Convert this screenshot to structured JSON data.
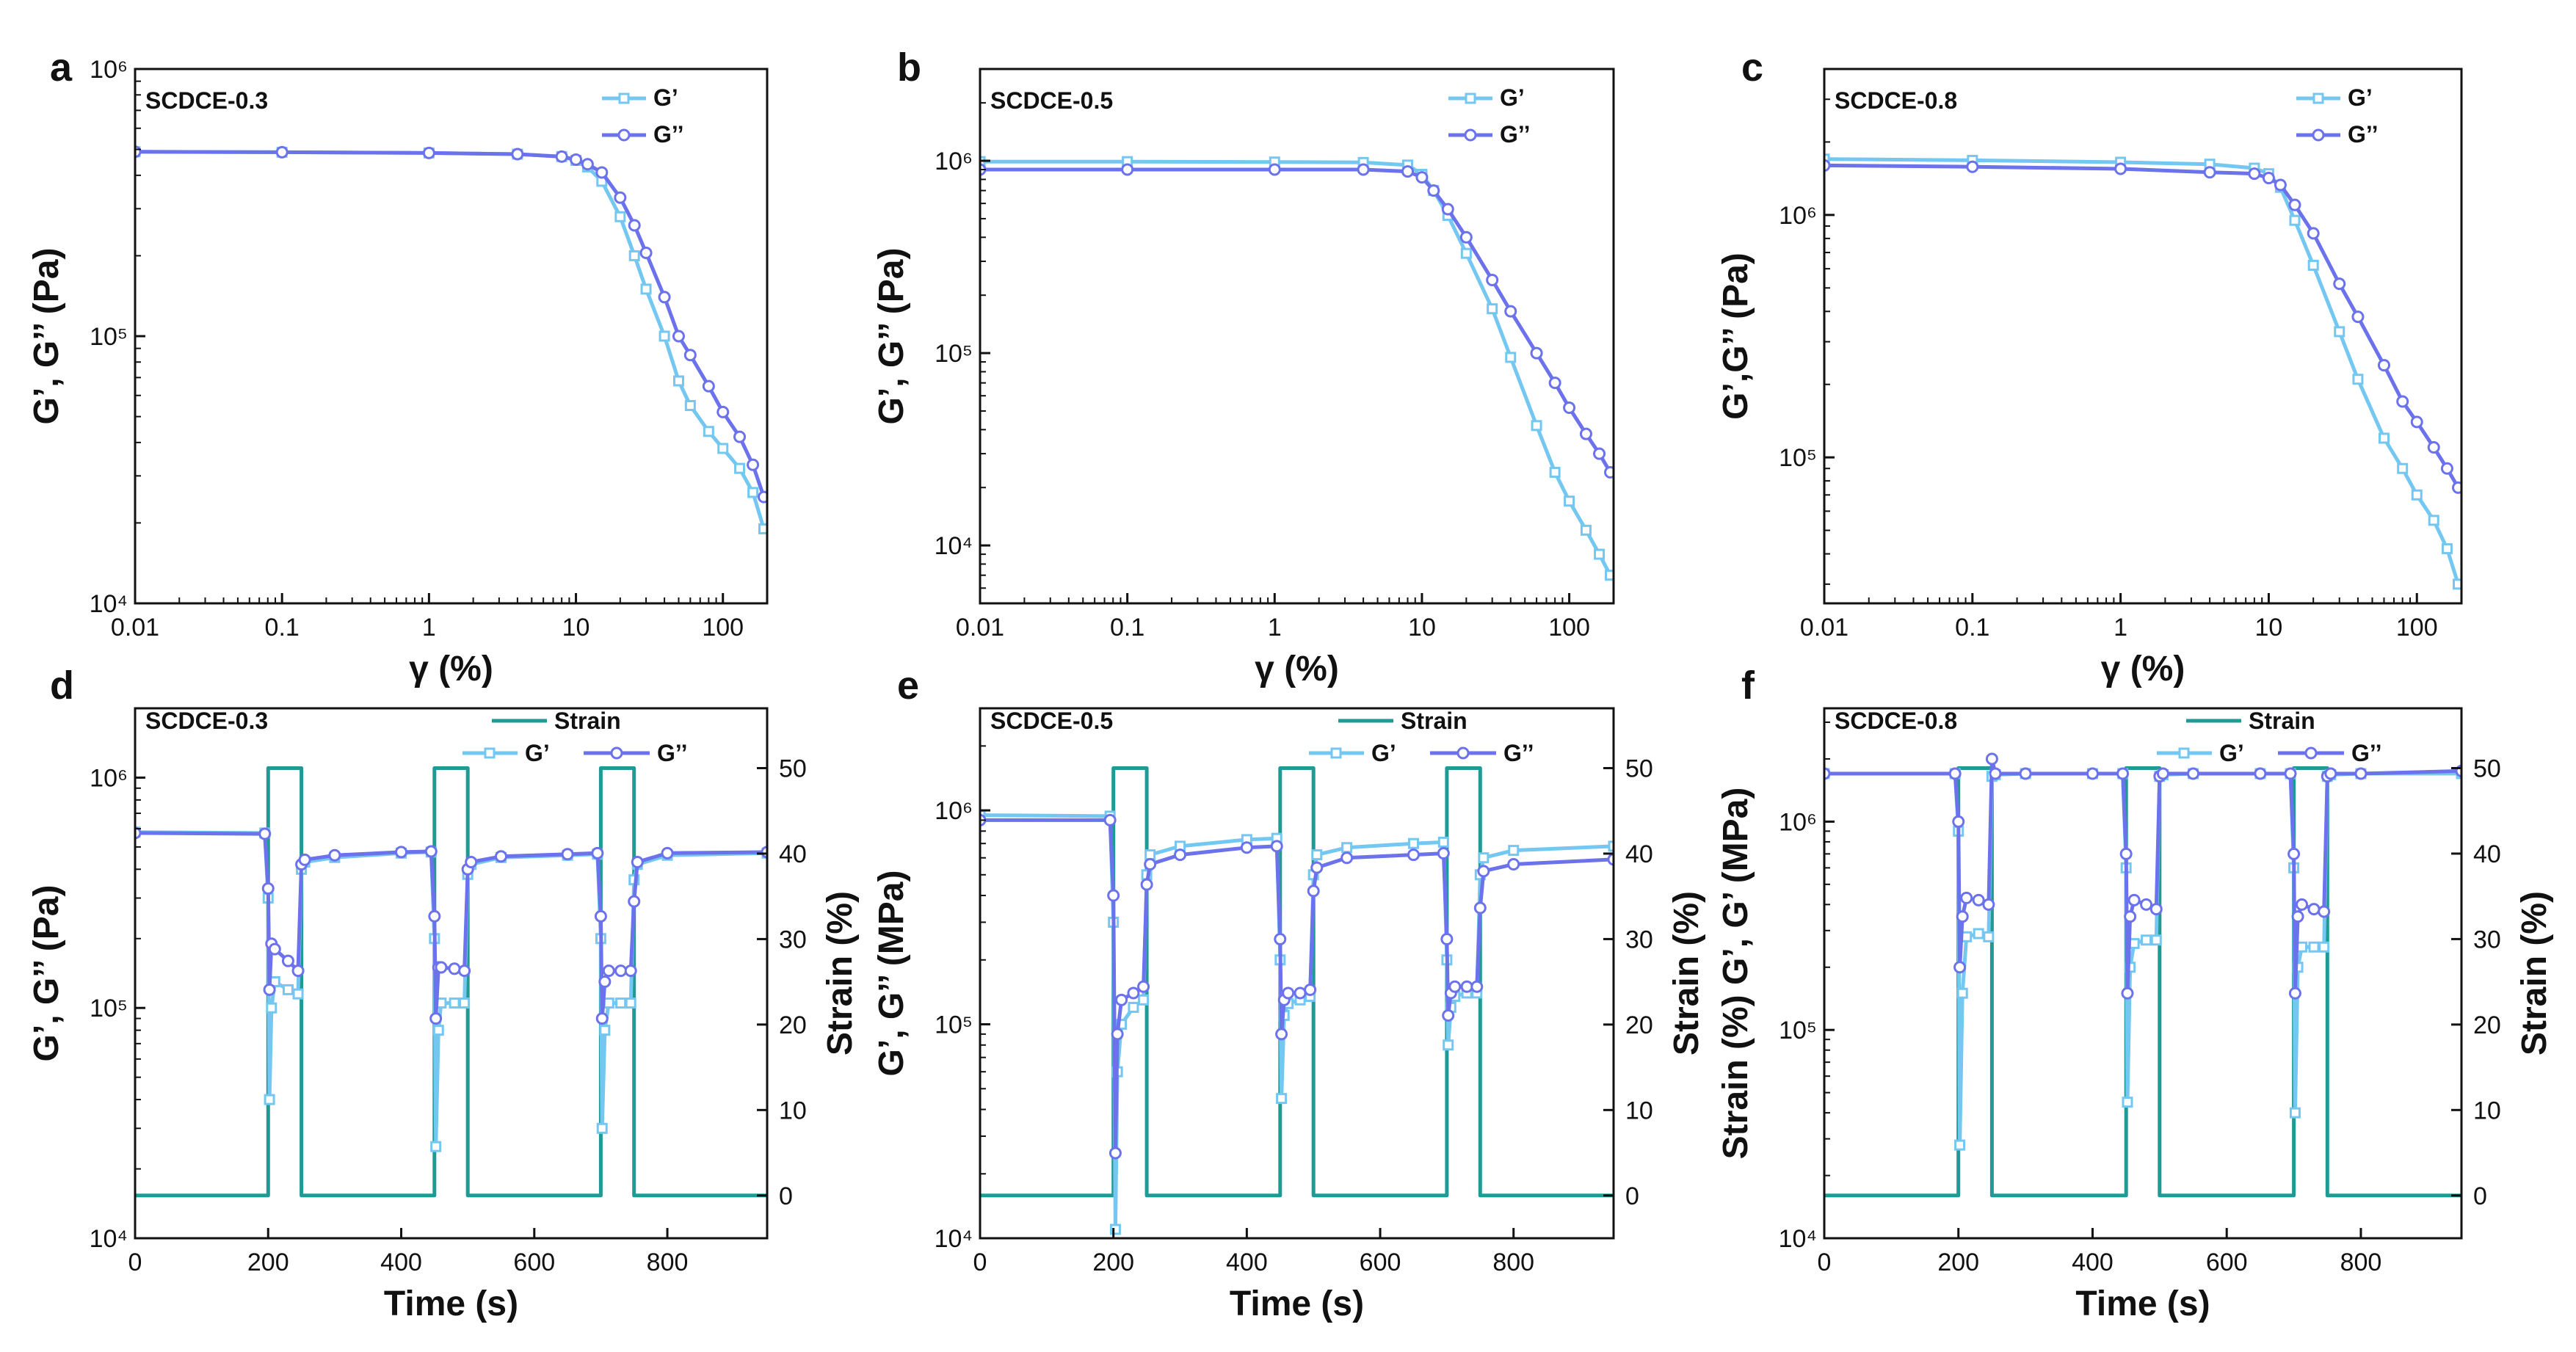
{
  "colors": {
    "g_prime": "#74c7f0",
    "g_double": "#6b72ec",
    "strain": "#1f9a95",
    "axis": "#111111"
  },
  "chart_data": [
    {
      "panel": "a",
      "type": "line",
      "sample": "SCDCE-0.3",
      "xscale": "log",
      "yscale": "log",
      "xlim": [
        0.01,
        200
      ],
      "ylim": [
        10000,
        1000000
      ],
      "xticks": [
        "0.01",
        "0.1",
        "1",
        "10",
        "100"
      ],
      "xtick_values": [
        0.01,
        0.1,
        1,
        10,
        100
      ],
      "yticks": [
        "10⁴",
        "10⁵",
        "10⁶"
      ],
      "ytick_values": [
        10000,
        100000,
        1000000
      ],
      "xlabel": "γ (%)",
      "ylabel": "G’, G’’ (Pa)",
      "legend": [
        "G’",
        "G’’"
      ],
      "series": [
        {
          "name": "G’",
          "x": [
            0.01,
            0.1,
            1,
            4,
            8,
            10,
            12,
            15,
            20,
            25,
            30,
            40,
            50,
            60,
            80,
            100,
            130,
            160,
            190
          ],
          "y": [
            490000,
            488000,
            485000,
            480000,
            470000,
            455000,
            430000,
            380000,
            280000,
            200000,
            150000,
            100000,
            68000,
            55000,
            44000,
            38000,
            32000,
            26000,
            19000
          ]
        },
        {
          "name": "G’’",
          "x": [
            0.01,
            0.1,
            1,
            4,
            8,
            10,
            12,
            15,
            20,
            25,
            30,
            40,
            50,
            60,
            80,
            100,
            130,
            160,
            190
          ],
          "y": [
            490000,
            488000,
            485000,
            480000,
            470000,
            458000,
            440000,
            410000,
            330000,
            260000,
            205000,
            140000,
            100000,
            85000,
            65000,
            52000,
            42000,
            33000,
            25000
          ]
        }
      ]
    },
    {
      "panel": "b",
      "type": "line",
      "sample": "SCDCE-0.5",
      "xscale": "log",
      "yscale": "log",
      "xlim": [
        0.01,
        200
      ],
      "ylim": [
        5000,
        3000000
      ],
      "xticks": [
        "0.01",
        "0.1",
        "1",
        "10",
        "100"
      ],
      "xtick_values": [
        0.01,
        0.1,
        1,
        10,
        100
      ],
      "yticks": [
        "10⁴",
        "10⁵",
        "10⁶"
      ],
      "ytick_values": [
        10000,
        100000,
        1000000
      ],
      "xlabel": "γ (%)",
      "ylabel": "G’, G’’ (Pa)",
      "legend": [
        "G’",
        "G’’"
      ],
      "series": [
        {
          "name": "G’",
          "x": [
            0.01,
            0.1,
            1,
            4,
            8,
            10,
            12,
            15,
            20,
            30,
            40,
            60,
            80,
            100,
            130,
            160,
            190
          ],
          "y": [
            990000,
            990000,
            985000,
            980000,
            950000,
            850000,
            700000,
            520000,
            330000,
            170000,
            95000,
            42000,
            24000,
            17000,
            12000,
            9000,
            7000
          ]
        },
        {
          "name": "G’’",
          "x": [
            0.01,
            0.1,
            1,
            4,
            8,
            10,
            12,
            15,
            20,
            30,
            40,
            60,
            80,
            100,
            130,
            160,
            190
          ],
          "y": [
            900000,
            900000,
            900000,
            900000,
            880000,
            820000,
            700000,
            560000,
            400000,
            240000,
            165000,
            100000,
            70000,
            52000,
            38000,
            30000,
            24000
          ]
        }
      ]
    },
    {
      "panel": "c",
      "type": "line",
      "sample": "SCDCE-0.8",
      "xscale": "log",
      "yscale": "log",
      "xlim": [
        0.01,
        200
      ],
      "ylim": [
        25000,
        4000000
      ],
      "xticks": [
        "0.01",
        "0.1",
        "1",
        "10",
        "100"
      ],
      "xtick_values": [
        0.01,
        0.1,
        1,
        10,
        100
      ],
      "yticks": [
        "10⁵",
        "10⁶"
      ],
      "ytick_values": [
        100000,
        1000000
      ],
      "xlabel": "γ (%)",
      "ylabel": "G’,G’’ (Pa)",
      "legend": [
        "G’",
        "G’’"
      ],
      "series": [
        {
          "name": "G’",
          "x": [
            0.01,
            0.1,
            1,
            4,
            8,
            10,
            12,
            15,
            20,
            30,
            40,
            60,
            80,
            100,
            130,
            160,
            190
          ],
          "y": [
            1700000,
            1680000,
            1650000,
            1620000,
            1560000,
            1480000,
            1300000,
            950000,
            620000,
            330000,
            210000,
            120000,
            90000,
            70000,
            55000,
            42000,
            30000
          ]
        },
        {
          "name": "G’’",
          "x": [
            0.01,
            0.1,
            1,
            4,
            8,
            10,
            12,
            15,
            20,
            30,
            40,
            60,
            80,
            100,
            130,
            160,
            190
          ],
          "y": [
            1600000,
            1580000,
            1550000,
            1500000,
            1480000,
            1420000,
            1330000,
            1100000,
            840000,
            520000,
            380000,
            240000,
            170000,
            140000,
            110000,
            90000,
            75000
          ]
        }
      ]
    },
    {
      "panel": "d",
      "type": "line",
      "sample": "SCDCE-0.3",
      "xscale": "linear",
      "yscale": "log",
      "xlim": [
        0,
        950
      ],
      "ylim": [
        10000,
        2000000
      ],
      "y2lim": [
        -5,
        57
      ],
      "xticks": [
        "0",
        "200",
        "400",
        "600",
        "800"
      ],
      "xtick_values": [
        0,
        200,
        400,
        600,
        800
      ],
      "yticks": [
        "10⁴",
        "10⁵",
        "10⁶"
      ],
      "ytick_values": [
        10000,
        100000,
        1000000
      ],
      "y2ticks": [
        "0",
        "10",
        "20",
        "30",
        "40",
        "50"
      ],
      "y2tick_values": [
        0,
        10,
        20,
        30,
        40,
        50
      ],
      "xlabel": "Time (s)",
      "ylabel": "G’, G’’ (Pa)",
      "y2label": "Strain (%)",
      "legend": [
        "Strain",
        "G’",
        "G’’"
      ],
      "series": [
        {
          "name": "Strain",
          "axis": "y2",
          "x": [
            0,
            200,
            200,
            250,
            250,
            450,
            450,
            500,
            500,
            700,
            700,
            750,
            750,
            950
          ],
          "y": [
            0,
            0,
            50,
            50,
            0,
            0,
            50,
            50,
            0,
            0,
            50,
            50,
            0,
            0
          ]
        },
        {
          "name": "G’",
          "x": [
            0,
            195,
            200,
            202,
            205,
            210,
            230,
            245,
            250,
            255,
            300,
            400,
            445,
            450,
            452,
            456,
            460,
            480,
            495,
            500,
            505,
            550,
            650,
            695,
            700,
            702,
            706,
            712,
            730,
            745,
            750,
            755,
            800,
            950
          ],
          "y": [
            580000,
            575000,
            300000,
            40000,
            100000,
            130000,
            120000,
            115000,
            400000,
            430000,
            450000,
            470000,
            475000,
            200000,
            25000,
            80000,
            105000,
            105000,
            105000,
            380000,
            420000,
            450000,
            460000,
            465000,
            200000,
            30000,
            80000,
            105000,
            105000,
            105000,
            360000,
            420000,
            460000,
            470000
          ]
        },
        {
          "name": "G’’",
          "x": [
            0,
            195,
            200,
            202,
            205,
            210,
            230,
            245,
            250,
            255,
            300,
            400,
            445,
            450,
            452,
            456,
            460,
            480,
            495,
            500,
            505,
            550,
            650,
            695,
            700,
            702,
            706,
            712,
            730,
            745,
            750,
            755,
            800,
            950
          ],
          "y": [
            575000,
            570000,
            330000,
            120000,
            190000,
            180000,
            160000,
            145000,
            420000,
            440000,
            460000,
            475000,
            478000,
            250000,
            90000,
            150000,
            150000,
            148000,
            145000,
            400000,
            430000,
            455000,
            465000,
            470000,
            250000,
            90000,
            130000,
            145000,
            145000,
            145000,
            290000,
            430000,
            470000,
            475000
          ]
        }
      ]
    },
    {
      "panel": "e",
      "type": "line",
      "sample": "SCDCE-0.5",
      "xscale": "linear",
      "yscale": "log",
      "xlim": [
        0,
        950
      ],
      "ylim": [
        10000,
        3000000
      ],
      "y2lim": [
        -5,
        57
      ],
      "xticks": [
        "0",
        "200",
        "400",
        "600",
        "800"
      ],
      "xtick_values": [
        0,
        200,
        400,
        600,
        800
      ],
      "yticks": [
        "10⁴",
        "10⁵",
        "10⁶"
      ],
      "ytick_values": [
        10000,
        100000,
        1000000
      ],
      "y2ticks": [
        "0",
        "10",
        "20",
        "30",
        "40",
        "50"
      ],
      "y2tick_values": [
        0,
        10,
        20,
        30,
        40,
        50
      ],
      "xlabel": "Time (s)",
      "ylabel": "G’, G’’ (MPa)",
      "y2label": "Strain (%)",
      "legend": [
        "Strain",
        "G’",
        "G’’"
      ],
      "series": [
        {
          "name": "Strain",
          "axis": "y2",
          "x": [
            0,
            200,
            200,
            250,
            250,
            450,
            450,
            500,
            500,
            700,
            700,
            750,
            750,
            950
          ],
          "y": [
            0,
            0,
            50,
            50,
            0,
            0,
            50,
            50,
            0,
            0,
            50,
            50,
            0,
            0
          ]
        },
        {
          "name": "G’",
          "x": [
            0,
            195,
            200,
            203,
            206,
            212,
            230,
            245,
            250,
            255,
            300,
            400,
            445,
            450,
            452,
            456,
            462,
            480,
            495,
            500,
            505,
            550,
            650,
            695,
            700,
            702,
            706,
            712,
            730,
            745,
            750,
            755,
            800,
            950
          ],
          "y": [
            950000,
            940000,
            300000,
            11000,
            60000,
            100000,
            120000,
            130000,
            500000,
            620000,
            680000,
            730000,
            740000,
            200000,
            45000,
            110000,
            125000,
            130000,
            135000,
            500000,
            620000,
            670000,
            700000,
            710000,
            200000,
            80000,
            120000,
            135000,
            140000,
            140000,
            500000,
            600000,
            650000,
            680000
          ]
        },
        {
          "name": "G’’",
          "x": [
            0,
            195,
            200,
            203,
            206,
            212,
            230,
            245,
            250,
            255,
            300,
            400,
            445,
            450,
            452,
            456,
            462,
            480,
            495,
            500,
            505,
            550,
            650,
            695,
            700,
            702,
            706,
            712,
            730,
            745,
            750,
            755,
            800,
            950
          ],
          "y": [
            900000,
            900000,
            400000,
            25000,
            90000,
            130000,
            140000,
            150000,
            450000,
            560000,
            620000,
            670000,
            680000,
            250000,
            90000,
            130000,
            140000,
            140000,
            145000,
            420000,
            540000,
            600000,
            620000,
            630000,
            250000,
            110000,
            140000,
            150000,
            150000,
            150000,
            350000,
            520000,
            560000,
            590000
          ]
        }
      ]
    },
    {
      "panel": "f",
      "type": "line",
      "sample": "SCDCE-0.8",
      "xscale": "linear",
      "yscale": "log",
      "xlim": [
        0,
        950
      ],
      "ylim": [
        10000,
        3500000
      ],
      "y2lim": [
        -5,
        57
      ],
      "xticks": [
        "0",
        "200",
        "400",
        "600",
        "800"
      ],
      "xtick_values": [
        0,
        200,
        400,
        600,
        800
      ],
      "yticks": [
        "10⁴",
        "10⁵",
        "10⁶"
      ],
      "ytick_values": [
        10000,
        100000,
        1000000
      ],
      "y2ticks": [
        "0",
        "10",
        "20",
        "30",
        "40",
        "50"
      ],
      "y2tick_values": [
        0,
        10,
        20,
        30,
        40,
        50
      ],
      "xlabel": "Time (s)",
      "ylabel": "Strain (%) G’, G’ (MPa)",
      "y2label": "Strain (%)",
      "legend": [
        "Strain",
        "G’",
        "G’’"
      ],
      "series": [
        {
          "name": "Strain",
          "axis": "y2",
          "x": [
            0,
            200,
            200,
            250,
            250,
            450,
            450,
            500,
            500,
            700,
            700,
            750,
            750,
            950
          ],
          "y": [
            0,
            0,
            50,
            50,
            0,
            0,
            50,
            50,
            0,
            0,
            50,
            50,
            0,
            0
          ]
        },
        {
          "name": "G’",
          "x": [
            0,
            195,
            200,
            202,
            206,
            212,
            230,
            245,
            250,
            255,
            300,
            400,
            445,
            450,
            452,
            456,
            462,
            480,
            495,
            500,
            505,
            550,
            650,
            695,
            700,
            702,
            706,
            712,
            730,
            745,
            750,
            755,
            800,
            950
          ],
          "y": [
            1700000,
            1700000,
            900000,
            28000,
            150000,
            280000,
            290000,
            280000,
            1650000,
            1680000,
            1700000,
            1700000,
            1700000,
            600000,
            45000,
            200000,
            260000,
            270000,
            270000,
            1650000,
            1680000,
            1700000,
            1700000,
            1700000,
            600000,
            40000,
            200000,
            250000,
            250000,
            250000,
            1650000,
            1680000,
            1700000,
            1700000
          ]
        },
        {
          "name": "G’’",
          "x": [
            0,
            195,
            200,
            202,
            206,
            212,
            230,
            245,
            250,
            255,
            300,
            400,
            445,
            450,
            452,
            456,
            462,
            480,
            495,
            500,
            505,
            550,
            650,
            695,
            700,
            702,
            706,
            712,
            730,
            745,
            750,
            755,
            800,
            950
          ],
          "y": [
            1700000,
            1700000,
            1000000,
            200000,
            350000,
            430000,
            420000,
            400000,
            2000000,
            1700000,
            1700000,
            1700000,
            1700000,
            700000,
            150000,
            350000,
            420000,
            400000,
            380000,
            1650000,
            1700000,
            1700000,
            1700000,
            1700000,
            700000,
            150000,
            350000,
            400000,
            380000,
            370000,
            1650000,
            1700000,
            1700000,
            1750000
          ]
        }
      ]
    }
  ]
}
